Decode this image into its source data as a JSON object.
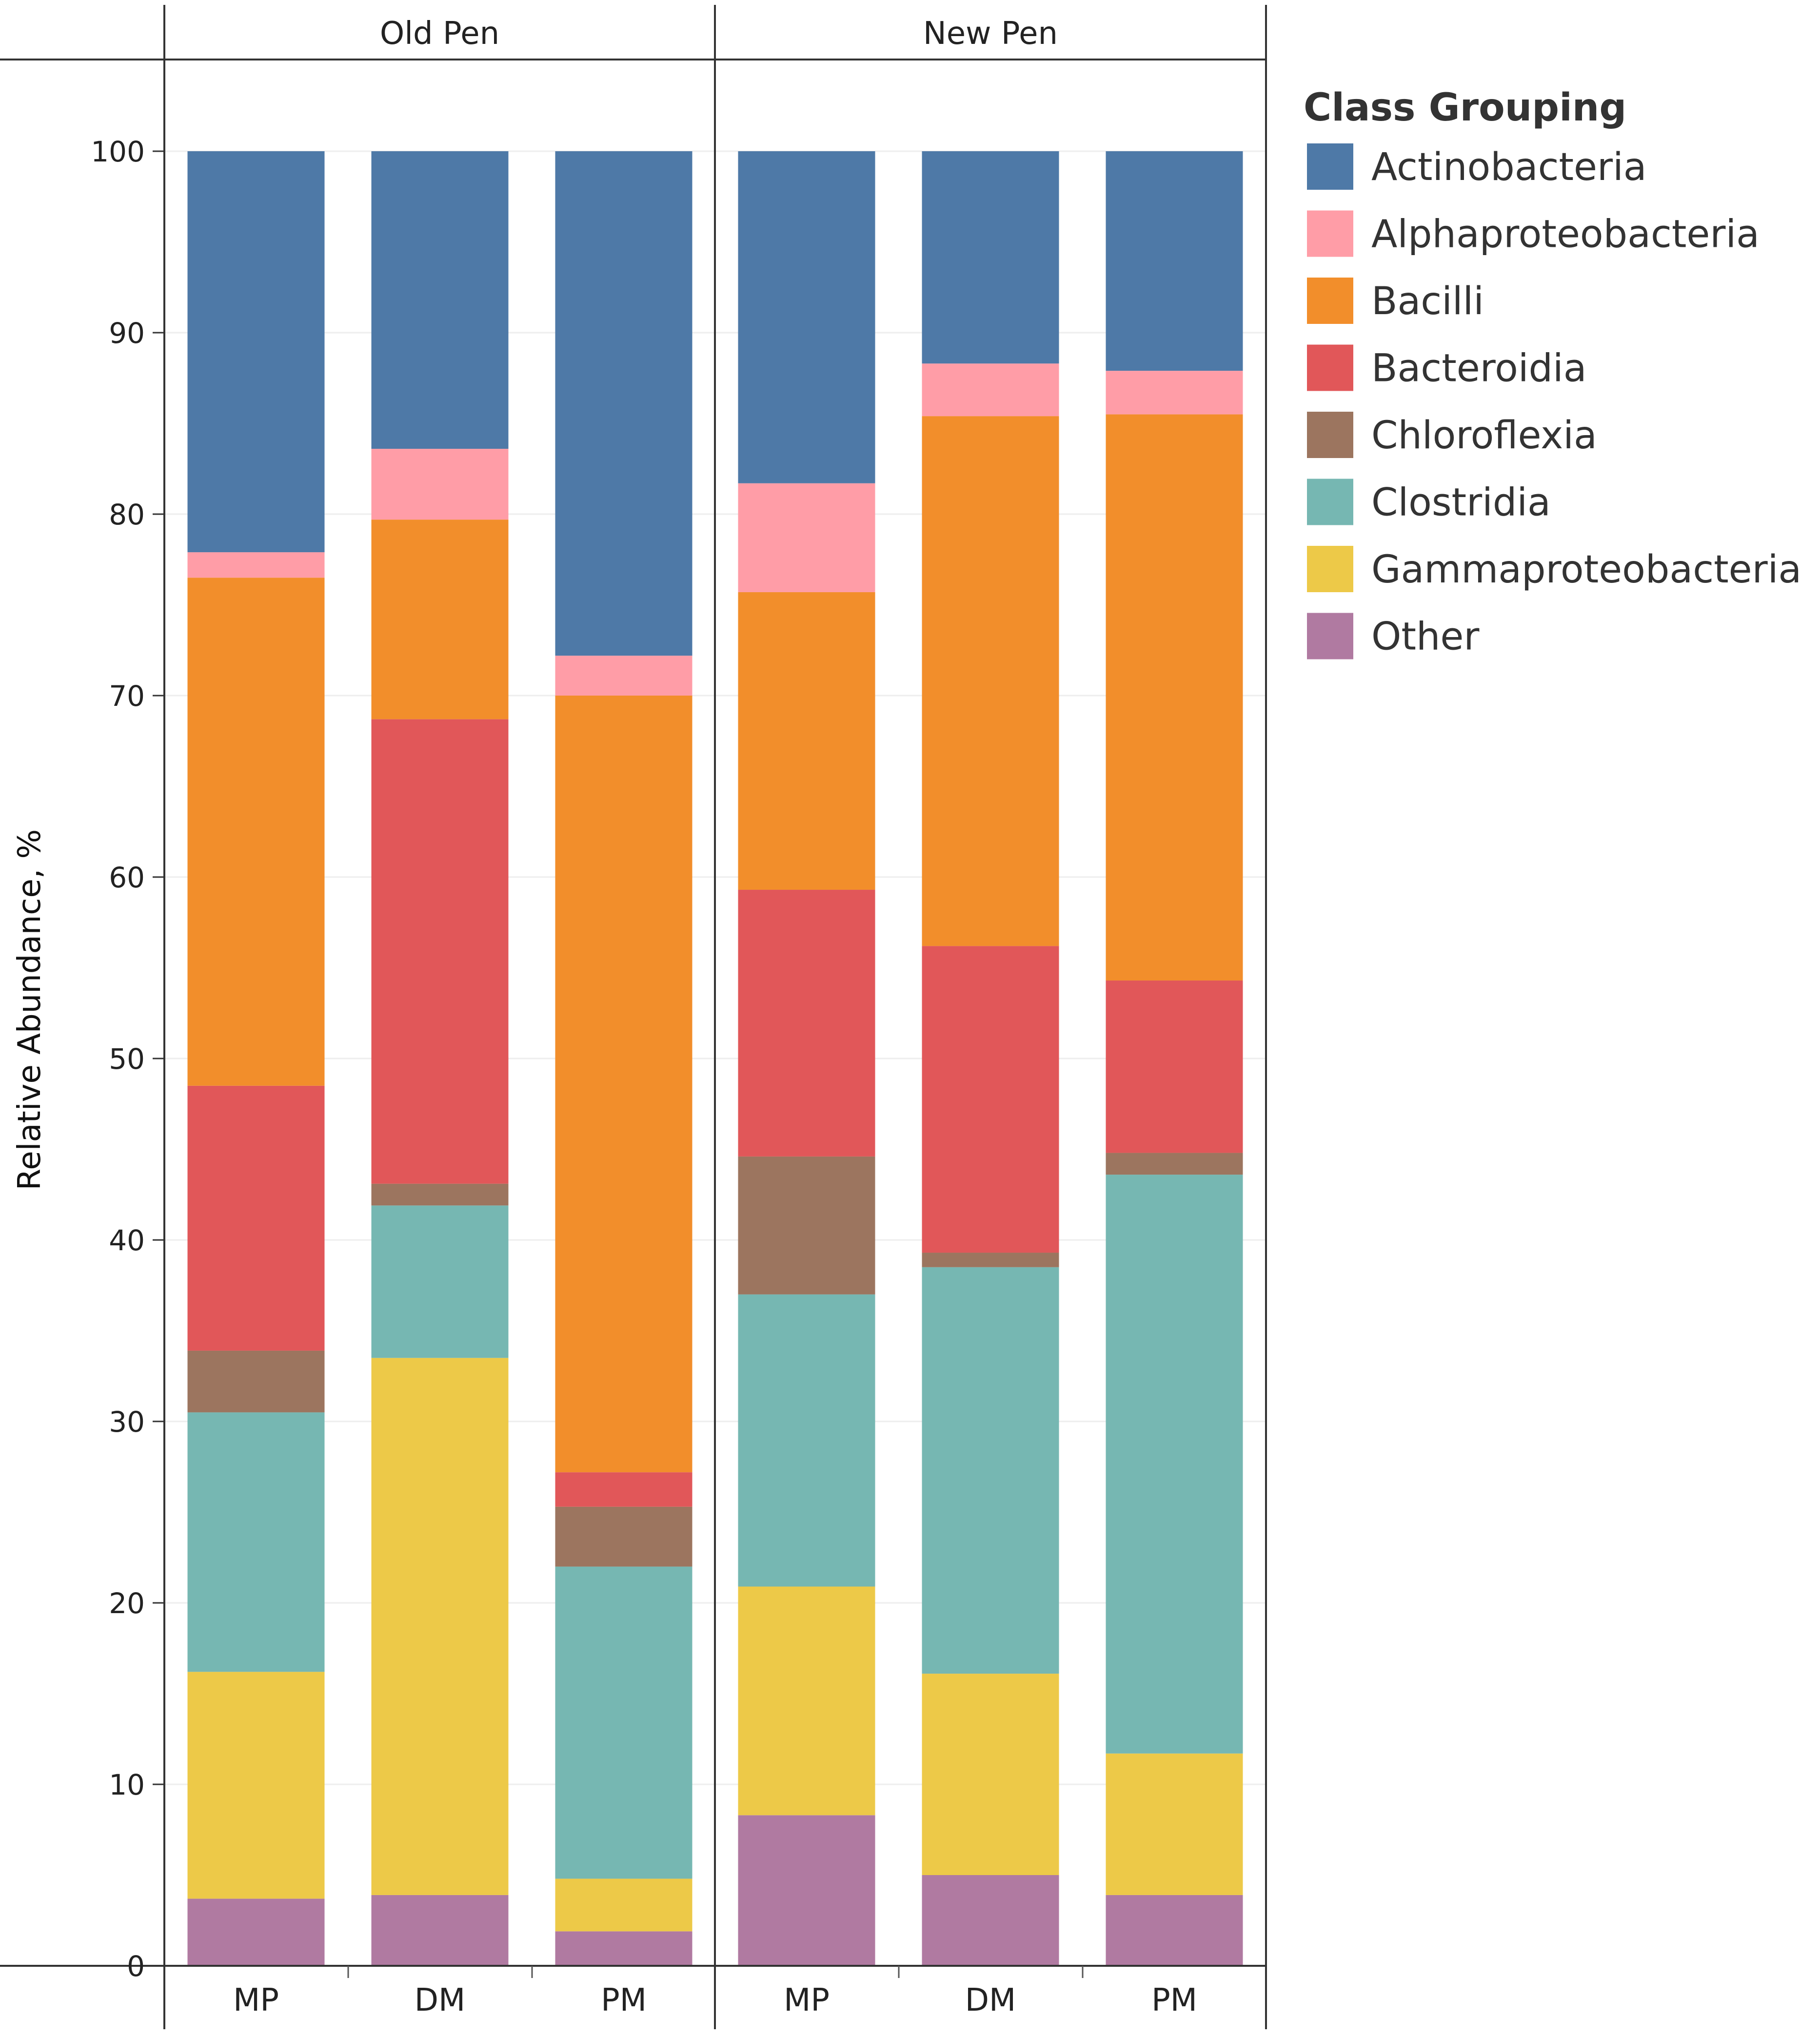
{
  "chart_data": {
    "type": "bar",
    "stacked": true,
    "title": "",
    "xlabel": "",
    "ylabel": "Relative Abundance, %",
    "ylim": [
      0,
      100
    ],
    "yticks": [
      0,
      10,
      20,
      30,
      40,
      50,
      60,
      70,
      80,
      90,
      100
    ],
    "ytick_labels": [
      "0",
      "10",
      "20",
      "30",
      "40",
      "50",
      "60",
      "70",
      "80",
      "90",
      "100"
    ],
    "facets": [
      "Old Pen",
      "New Pen"
    ],
    "categories": [
      "MP",
      "DM",
      "PM"
    ],
    "legend_title": "Class Grouping",
    "legend_position": "right",
    "series": [
      {
        "name": "Other",
        "color": "#B07AA1",
        "values": [
          [
            3.7,
            3.9,
            1.9
          ],
          [
            8.3,
            5.0,
            3.9
          ]
        ]
      },
      {
        "name": "Gammaproteobacteria",
        "color": "#EDC948",
        "values": [
          [
            12.5,
            29.6,
            2.9
          ],
          [
            12.6,
            11.1,
            7.8
          ]
        ]
      },
      {
        "name": "Clostridia",
        "color": "#76B7B2",
        "values": [
          [
            14.3,
            8.4,
            17.2
          ],
          [
            16.1,
            22.4,
            31.9
          ]
        ]
      },
      {
        "name": "Chloroflexia",
        "color": "#9C755F",
        "values": [
          [
            3.4,
            1.2,
            3.3
          ],
          [
            7.6,
            0.8,
            1.2
          ]
        ]
      },
      {
        "name": "Bacteroidia",
        "color": "#E15759",
        "values": [
          [
            14.6,
            25.6,
            1.9
          ],
          [
            14.7,
            16.9,
            9.5
          ]
        ]
      },
      {
        "name": "Bacilli",
        "color": "#F28E2B",
        "values": [
          [
            28.0,
            11.0,
            42.8
          ],
          [
            16.4,
            29.2,
            31.2
          ]
        ]
      },
      {
        "name": "Alphaproteobacteria",
        "color": "#FF9DA7",
        "values": [
          [
            1.4,
            3.9,
            2.2
          ],
          [
            6.0,
            2.9,
            2.4
          ]
        ]
      },
      {
        "name": "Actinobacteria",
        "color": "#4E79A7",
        "values": [
          [
            22.1,
            16.4,
            27.8
          ],
          [
            18.3,
            11.7,
            12.1
          ]
        ]
      }
    ],
    "legend_order": [
      "Actinobacteria",
      "Alphaproteobacteria",
      "Bacilli",
      "Bacteroidia",
      "Chloroflexia",
      "Clostridia",
      "Gammaproteobacteria",
      "Other"
    ]
  }
}
